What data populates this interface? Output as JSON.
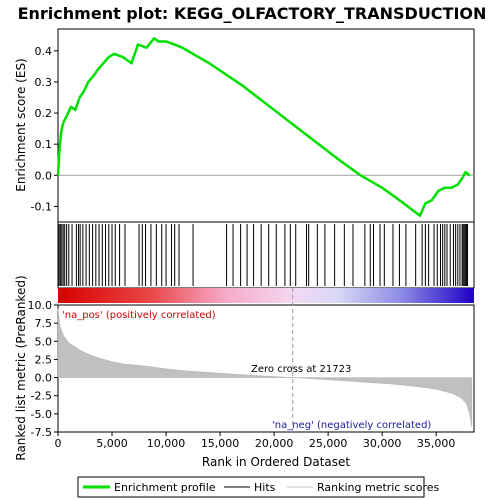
{
  "chart_data": {
    "type": "line",
    "title": "Enrichment plot: KEGG_OLFACTORY_TRANSDUCTION",
    "xlabel": "Rank in Ordered Dataset",
    "xlim": [
      0,
      38500
    ],
    "x_ticks": [
      0,
      5000,
      10000,
      15000,
      20000,
      25000,
      30000,
      35000
    ],
    "x_tick_labels": [
      "0",
      "5,000",
      "10,000",
      "15,000",
      "20,000",
      "25,000",
      "30,000",
      "35,000"
    ],
    "panels": {
      "enrichment": {
        "ylabel": "Enrichment score (ES)",
        "ylim": [
          -0.15,
          0.47
        ],
        "y_ticks": [
          -0.1,
          0.0,
          0.1,
          0.2,
          0.3,
          0.4
        ],
        "y_tick_labels": [
          "-0.1",
          "0.0",
          "0.1",
          "0.2",
          "0.3",
          "0.4"
        ],
        "series": [
          {
            "name": "Enrichment profile",
            "color": "#00e000",
            "x": [
              0,
              150,
              300,
              500,
              800,
              1200,
              1600,
              2000,
              2400,
              2800,
              3300,
              3700,
              4200,
              4700,
              5200,
              6000,
              6800,
              7400,
              8200,
              8900,
              9300,
              10000,
              10800,
              11500,
              14000,
              17000,
              20000,
              23000,
              26000,
              28000,
              30000,
              32000,
              33500,
              34000,
              34600,
              35200,
              35800,
              36400,
              37000,
              37400,
              37700,
              38100
            ],
            "values": [
              0.0,
              0.09,
              0.14,
              0.17,
              0.19,
              0.22,
              0.21,
              0.25,
              0.27,
              0.3,
              0.32,
              0.34,
              0.36,
              0.38,
              0.39,
              0.38,
              0.36,
              0.42,
              0.41,
              0.44,
              0.43,
              0.43,
              0.42,
              0.41,
              0.36,
              0.29,
              0.21,
              0.13,
              0.05,
              0.0,
              -0.04,
              -0.09,
              -0.13,
              -0.09,
              -0.08,
              -0.05,
              -0.04,
              -0.04,
              -0.03,
              -0.01,
              0.01,
              0.0
            ]
          }
        ]
      },
      "hits": {
        "positions": [
          100,
          220,
          350,
          480,
          620,
          800,
          1000,
          1300,
          1700,
          1900,
          2050,
          2300,
          2600,
          2900,
          3200,
          3500,
          3800,
          4100,
          4400,
          4700,
          5000,
          5300,
          5700,
          6200,
          7500,
          7800,
          8100,
          8600,
          9100,
          9600,
          10000,
          10500,
          10800,
          11200,
          12500,
          15600,
          16200,
          16900,
          17500,
          18100,
          18800,
          19500,
          20200,
          21000,
          21500,
          22000,
          23000,
          23200,
          24000,
          24700,
          25600,
          26500,
          27300,
          28400,
          28900,
          29200,
          29800,
          30200,
          31000,
          31600,
          32200,
          33100,
          33700,
          34000,
          34300,
          34800,
          35100,
          35400,
          35600,
          35800,
          36000,
          36300,
          36600,
          36800,
          37000,
          37200,
          37400,
          37500,
          37600,
          37700,
          37800,
          37900
        ]
      },
      "ranked_metric": {
        "ylabel": "Ranked list metric (PreRanked)",
        "ylim": [
          -7.5,
          10.0
        ],
        "y_ticks": [
          -7.5,
          -5.0,
          -2.5,
          0.0,
          2.5,
          5.0,
          7.5,
          10.0
        ],
        "y_tick_labels": [
          "-7.5",
          "-5.0",
          "-2.5",
          "0.0",
          "2.5",
          "5.0",
          "7.5",
          "10.0"
        ],
        "x": [
          0,
          200,
          500,
          1000,
          2000,
          3000,
          4000,
          5000,
          6000,
          8000,
          10000,
          12000,
          15000,
          18000,
          21723,
          25000,
          28000,
          31000,
          33000,
          35000,
          36500,
          37300,
          37800,
          38100,
          38300
        ],
        "values": [
          9.5,
          7.0,
          5.8,
          4.8,
          3.8,
          3.1,
          2.6,
          2.2,
          1.9,
          1.6,
          1.2,
          0.9,
          0.6,
          0.3,
          0.0,
          -0.3,
          -0.6,
          -0.9,
          -1.2,
          -1.6,
          -2.2,
          -2.8,
          -3.6,
          -5.0,
          -6.8
        ]
      },
      "annotations": {
        "pos": "'na_pos' (positively correlated)",
        "neg": "'na_neg' (negatively correlated)",
        "zero": "Zero cross at 21723",
        "zero_rank": 21723
      }
    },
    "legend": {
      "placement": "bottom",
      "entries": [
        {
          "label": "Enrichment profile",
          "color": "#00e000"
        },
        {
          "label": "Hits",
          "color": "#000000"
        },
        {
          "label": "Ranking metric scores",
          "color": "#c0c0c0"
        }
      ]
    }
  }
}
